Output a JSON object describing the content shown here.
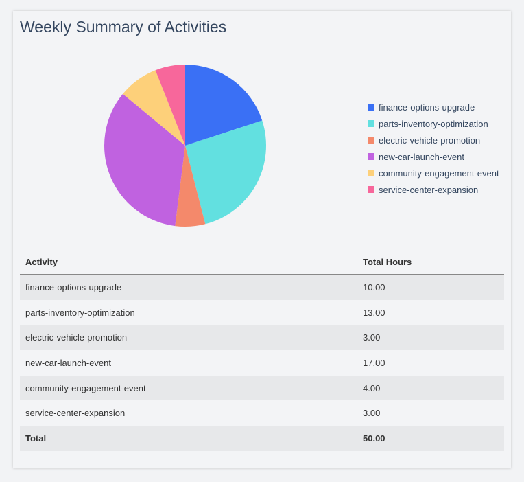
{
  "title": "Weekly Summary of Activities",
  "chart_data": {
    "type": "pie",
    "categories": [
      "finance-options-upgrade",
      "parts-inventory-optimization",
      "electric-vehicle-promotion",
      "new-car-launch-event",
      "community-engagement-event",
      "service-center-expansion"
    ],
    "values": [
      10,
      13,
      3,
      17,
      4,
      3
    ],
    "colors": [
      "#3a70f5",
      "#62e0e0",
      "#f4896b",
      "#c062e0",
      "#fdd07a",
      "#f7679b"
    ],
    "legend_position": "right"
  },
  "table": {
    "headers": [
      "Activity",
      "Total Hours"
    ],
    "rows": [
      [
        "finance-options-upgrade",
        "10.00"
      ],
      [
        "parts-inventory-optimization",
        "13.00"
      ],
      [
        "electric-vehicle-promotion",
        "3.00"
      ],
      [
        "new-car-launch-event",
        "17.00"
      ],
      [
        "community-engagement-event",
        "4.00"
      ],
      [
        "service-center-expansion",
        "3.00"
      ]
    ],
    "total": [
      "Total",
      "50.00"
    ]
  }
}
